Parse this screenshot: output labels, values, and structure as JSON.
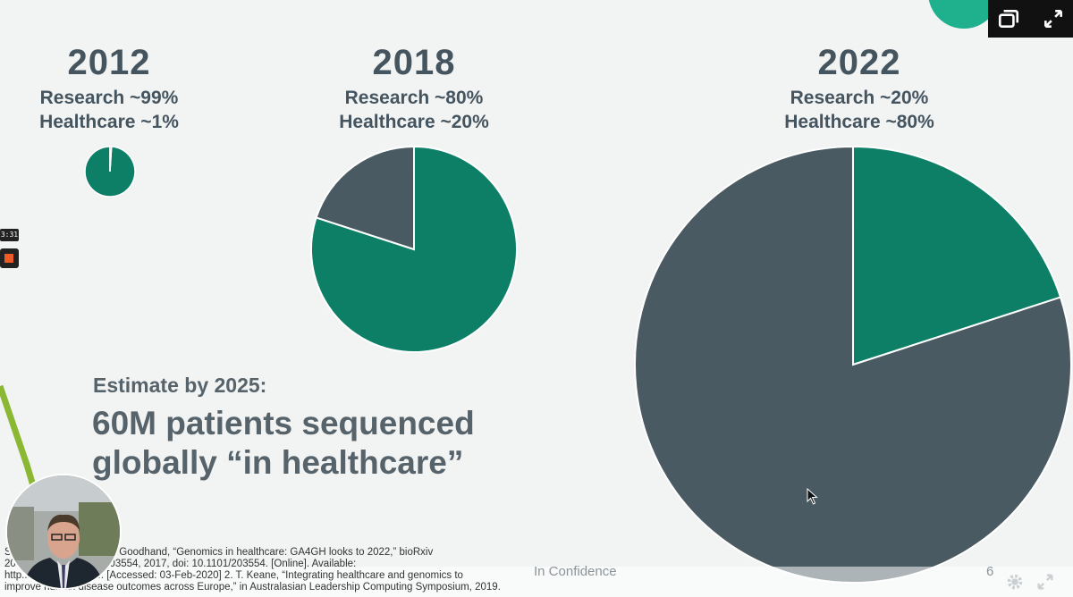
{
  "slide": {
    "panels": [
      {
        "year": "2012",
        "research": "Research ~99%",
        "healthcare": "Healthcare ~1%"
      },
      {
        "year": "2018",
        "research": "Research ~80%",
        "healthcare": "Healthcare ~20%"
      },
      {
        "year": "2022",
        "research": "Research ~20%",
        "healthcare": "Healthcare ~80%"
      }
    ],
    "estimate_label": "Estimate by 2025:",
    "estimate_line1": "60M patients sequenced",
    "estimate_line2": "globally “in healthcare”",
    "references": [
      "S... ...amathevan, and P. Goodhand, “Genomics in healthcare: GA4GH looks to 2022,” bioRxiv",
      "20... ...oi.org/10.1101/203554, 2017, doi: 10.1101/203554. [Online]. Available:",
      "http... ...1101/203554. [Accessed: 03-Feb-2020] 2. T. Keane, “Integrating healthcare and genomics to",
      "improve human disease outcomes across Europe,” in Australasian Leadership Computing Symposium, 2019."
    ],
    "footer_text": "In Confidence",
    "page_number": "6"
  },
  "recorder": {
    "timer": "3:31"
  },
  "colors": {
    "teal": "#0d7f66",
    "slate": "#4a5a63",
    "text": "#455560",
    "background": "#f2f3f3",
    "accent_blob": "#1fb08e",
    "record": "#ec5a26"
  },
  "icons": [
    "picture-in-picture-icon",
    "fullscreen-icon",
    "settings-gear-icon",
    "expand-icon",
    "mouse-cursor-icon",
    "record-stop-icon"
  ],
  "chart_data": [
    {
      "type": "pie",
      "title": "2012",
      "slices": [
        {
          "name": "Research",
          "value": 99
        },
        {
          "name": "Healthcare",
          "value": 1
        }
      ]
    },
    {
      "type": "pie",
      "title": "2018",
      "slices": [
        {
          "name": "Research",
          "value": 80
        },
        {
          "name": "Healthcare",
          "value": 20
        }
      ]
    },
    {
      "type": "pie",
      "title": "2022",
      "slices": [
        {
          "name": "Research",
          "value": 20
        },
        {
          "name": "Healthcare",
          "value": 80
        }
      ]
    }
  ]
}
